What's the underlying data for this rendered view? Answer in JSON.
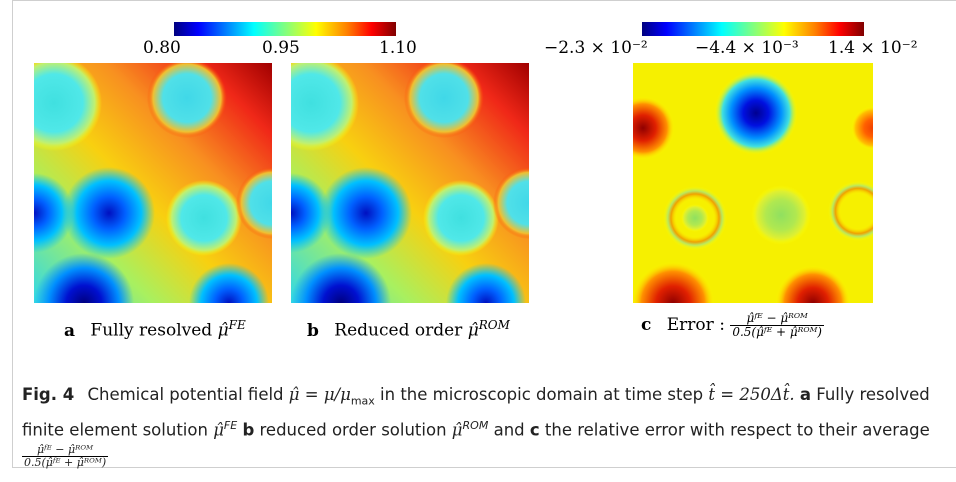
{
  "colors": {
    "colormap": [
      "#00007f",
      "#0000ff",
      "#0080ff",
      "#00ffff",
      "#80ff80",
      "#ffff00",
      "#ff8000",
      "#ff0000",
      "#7f0000"
    ],
    "frame": "#cfcfcf",
    "caption_text": "#222222"
  },
  "colorbar_left": {
    "ticks": [
      "0.80",
      "0.95",
      "1.10"
    ],
    "range": [
      0.8,
      1.1
    ]
  },
  "colorbar_right": {
    "ticks": [
      "−2.3 × 10⁻²",
      "−4.4 × 10⁻³",
      "1.4 × 10⁻²"
    ]
  },
  "panels": [
    {
      "letter": "a",
      "text": "Fully resolved",
      "symbol": "μ̂",
      "superscript": "FE"
    },
    {
      "letter": "b",
      "text": "Reduced order",
      "symbol": "μ̂",
      "superscript": "ROM"
    },
    {
      "letter": "c",
      "text": "Error :",
      "frac_num": "μ̂ᶠᴱ − μ̂ᴿᴼᴹ",
      "frac_den": "0.5(μ̂ᶠᴱ + μ̂ᴿᴼᴹ)"
    }
  ],
  "caption": {
    "fig_label": "Fig. 4",
    "part1": "Chemical potential field",
    "eq1": "μ̂ = μ/μ",
    "eq1_sub": "max",
    "part2": "in the microscopic domain at time step",
    "eq2": "t̂ = 250Δt̂.",
    "a": "a",
    "part3": "Fully resolved finite element solution",
    "sym": "μ̂",
    "sup_fe": "FE",
    "b": "b",
    "part4": "reduced order solution",
    "sup_rom": "ROM",
    "part5": "and",
    "c": "c",
    "part6": "the relative error with respect to their average",
    "frac_num": "μ̂ᶠᴱ − μ̂ᴿᴼᴹ",
    "frac_den": "0.5(μ̂ᶠᴱ + μ̂ᴿᴼᴹ)"
  }
}
